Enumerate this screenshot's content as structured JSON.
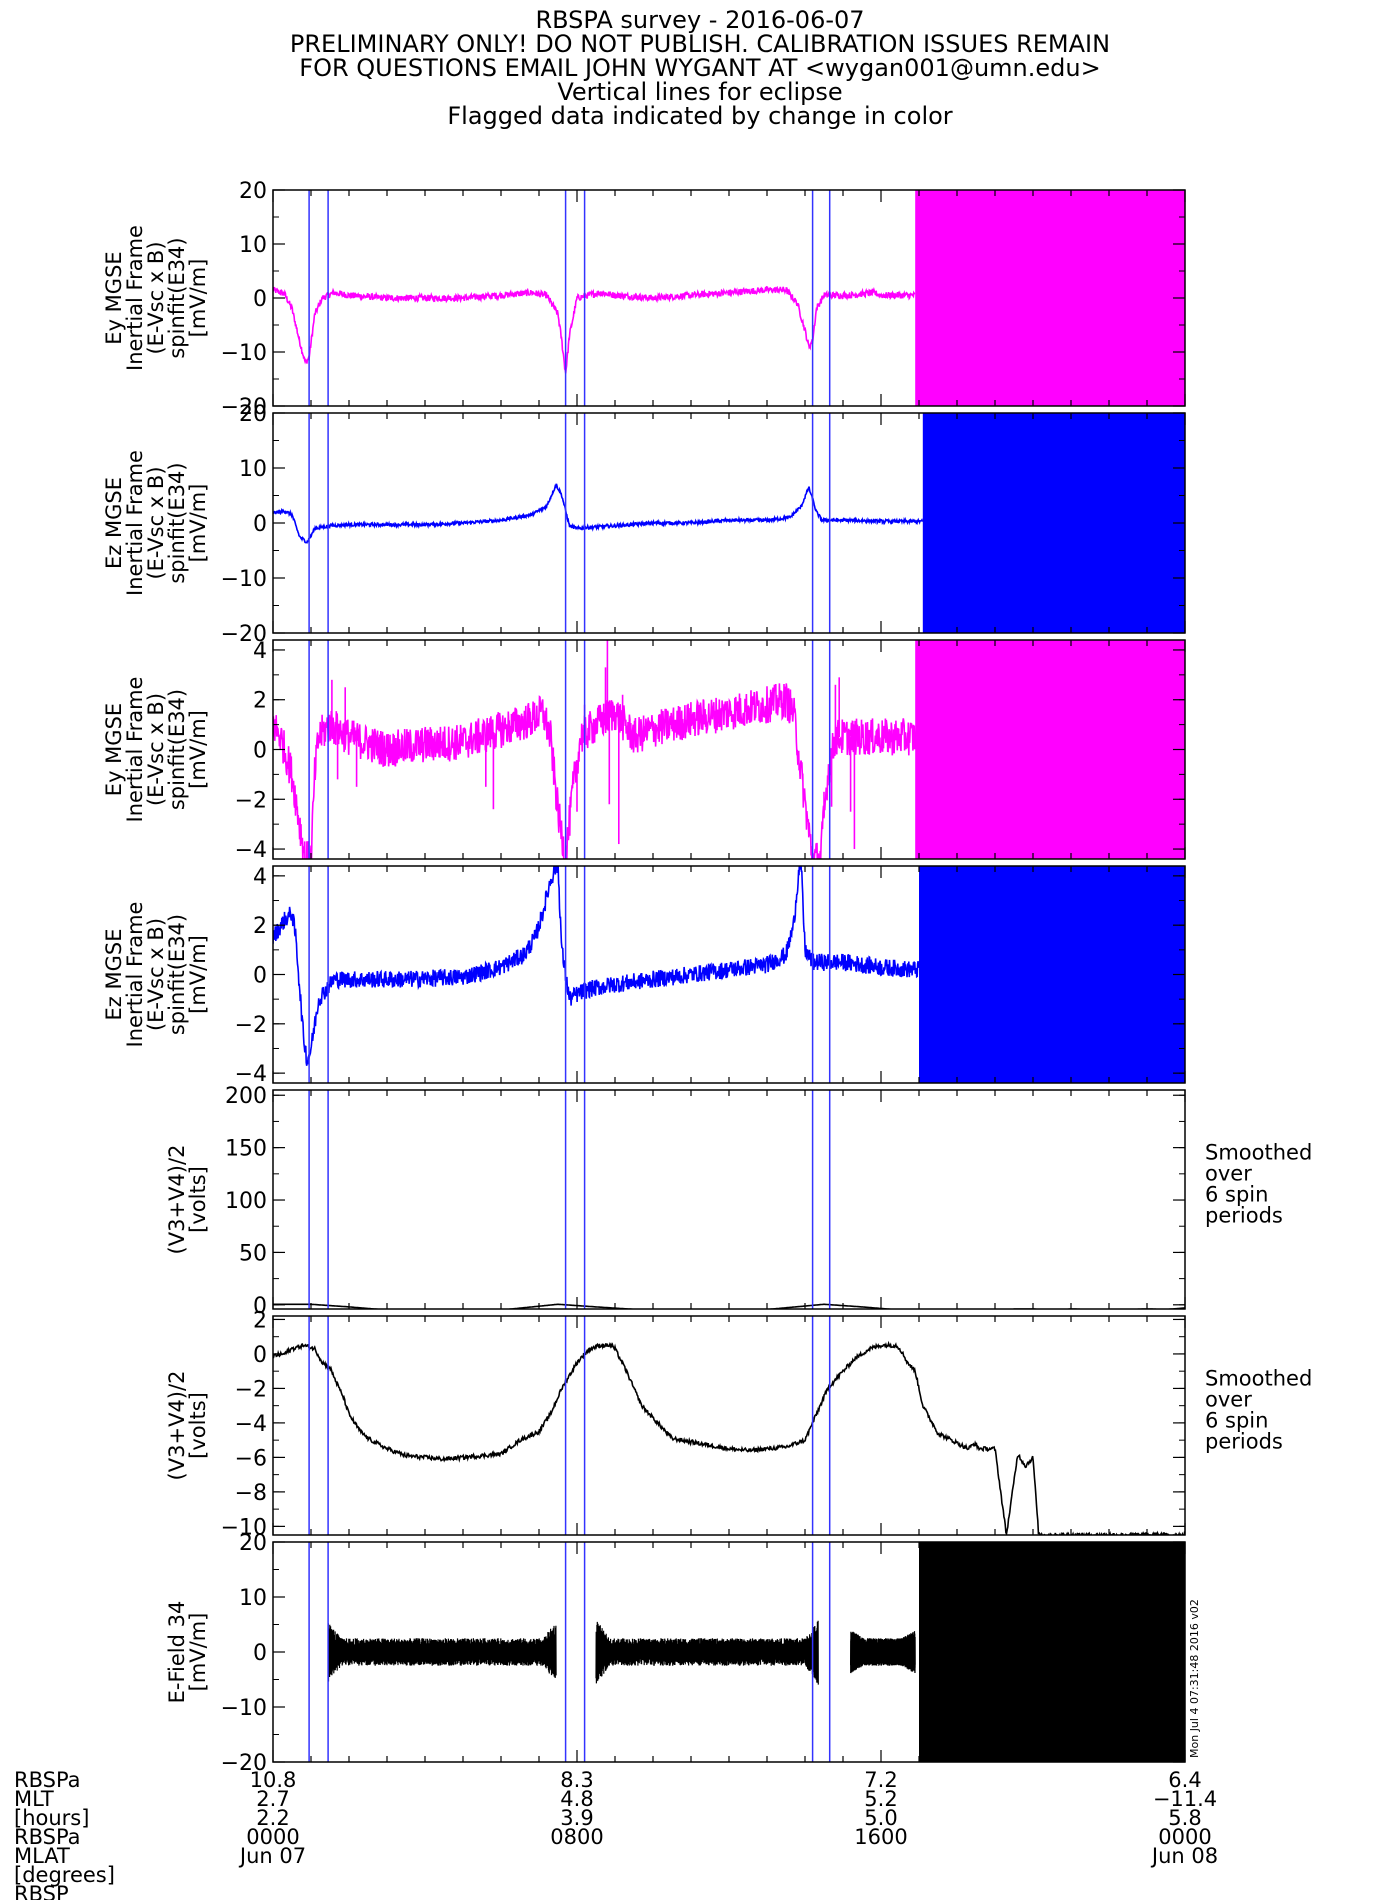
{
  "header": {
    "lines": [
      "RBSPA survey - 2016-06-07",
      "PRELIMINARY ONLY! DO NOT PUBLISH. CALIBRATION ISSUES REMAIN",
      "FOR QUESTIONS EMAIL JOHN WYGANT AT <wygan001@umn.edu>",
      "Vertical lines for eclipse",
      "Flagged data indicated by change in color"
    ]
  },
  "colors": {
    "magenta": "#ff00ff",
    "blue": "#0000ff",
    "black": "#000000",
    "eclipse_line": "#3333ff"
  },
  "timestamp_label": "Mon Jul  4 07:31:48 2016 v02",
  "eclipse_lines_hours": [
    0.95,
    1.45,
    7.7,
    8.2,
    14.2,
    14.65
  ],
  "footer": {
    "row_labels": [
      "RBSPa",
      "MLT",
      "[hours]",
      "RBSPa",
      "MLAT",
      "[degrees]",
      "RBSP"
    ],
    "ticks": [
      {
        "hour": 0,
        "values": [
          "10.8",
          "2.7",
          "2.2",
          "0000",
          "Jun 07"
        ]
      },
      {
        "hour": 8,
        "values": [
          "8.3",
          "4.8",
          "3.9",
          "0800",
          ""
        ]
      },
      {
        "hour": 16,
        "values": [
          "7.2",
          "5.2",
          "5.0",
          "1600",
          ""
        ]
      },
      {
        "hour": 24,
        "values": [
          "6.4",
          "-11.4",
          "5.8",
          "0000",
          "Jun 08"
        ]
      }
    ]
  },
  "chart_data": [
    {
      "type": "line",
      "color": "#ff00ff",
      "ylabel": [
        "Ey MGSE",
        "Inertial Frame",
        "(E-Vsc x B)",
        "spinfit(E34)",
        "[mV/m]"
      ],
      "ylim": [
        -20,
        20
      ],
      "yticks": [
        20,
        10,
        0,
        -10,
        -20
      ],
      "x": [
        0,
        0.3,
        0.5,
        0.7,
        0.85,
        0.95,
        1.1,
        1.3,
        1.6,
        2.0,
        3,
        5,
        6,
        6.8,
        7.2,
        7.5,
        7.6,
        7.7,
        7.8,
        8.0,
        8.3,
        8.6,
        9,
        10,
        11,
        12,
        13,
        13.5,
        13.8,
        14.0,
        14.1,
        14.2,
        14.3,
        14.5,
        14.8,
        15.2,
        15.8,
        16.0,
        16.2,
        16.4,
        16.6,
        16.8,
        24
      ],
      "y": [
        1.5,
        0.8,
        -2,
        -8,
        -12,
        -11,
        -3,
        0,
        1,
        0.5,
        0,
        0,
        0.5,
        1,
        0.5,
        -3,
        -8,
        -14,
        -7,
        0,
        0.5,
        1,
        0.5,
        0,
        0.5,
        1,
        1.5,
        1.5,
        -1,
        -6,
        -9,
        -8,
        -2,
        0.5,
        0.5,
        0.5,
        1,
        0.5,
        0.5,
        0.5,
        0.5,
        0.5,
        0.5
      ],
      "noise": 0.6,
      "flagged_region": {
        "x": [
          16.9,
          24
        ],
        "ylim": [
          -20,
          20
        ]
      }
    },
    {
      "type": "line",
      "color": "#0000ff",
      "ylabel": [
        "Ez MGSE",
        "Inertial Frame",
        "(E-Vsc x B)",
        "spinfit(E34)",
        "[mV/m]"
      ],
      "ylim": [
        -20,
        20
      ],
      "yticks": [
        20,
        10,
        0,
        -10,
        -20
      ],
      "x": [
        0,
        0.3,
        0.5,
        0.7,
        0.9,
        1.1,
        1.5,
        2,
        3,
        4,
        5,
        6,
        6.8,
        7.2,
        7.45,
        7.6,
        7.8,
        8.0,
        8.3,
        9,
        10,
        11,
        12,
        13,
        13.6,
        13.9,
        14.1,
        14.3,
        14.45,
        14.6,
        15.2,
        16,
        16.8,
        24
      ],
      "y": [
        1.8,
        2.2,
        1.5,
        -2.5,
        -3.5,
        -1,
        -0.5,
        -0.3,
        -0.3,
        -0.3,
        0,
        0.5,
        1.5,
        3,
        7,
        5,
        -0.5,
        -1,
        -0.8,
        -0.5,
        0,
        0,
        0.5,
        0.5,
        1,
        3,
        6.5,
        2,
        0.5,
        0.5,
        0.5,
        0.3,
        0.3,
        0.3
      ],
      "noise": 0.3,
      "flagged_region": {
        "x": [
          17.1,
          24
        ],
        "ylim": [
          -20,
          20
        ]
      }
    },
    {
      "type": "line",
      "color": "#ff00ff",
      "ylabel": [
        "Ey MGSE",
        "Inertial Frame",
        "(E-Vsc x B)",
        "spinfit(E34)",
        "[mV/m]"
      ],
      "ylim": [
        -4.4,
        4.4
      ],
      "yticks": [
        4,
        2,
        0,
        -2,
        -4
      ],
      "x": [
        0,
        0.2,
        0.5,
        0.7,
        0.85,
        1.0,
        1.1,
        1.2,
        1.5,
        2.0,
        3.0,
        4.0,
        5.0,
        6.0,
        6.8,
        7.1,
        7.3,
        7.5,
        7.7,
        7.9,
        8.1,
        8.5,
        9.0,
        9.5,
        10.0,
        11.0,
        12.0,
        13.0,
        13.5,
        13.7,
        13.9,
        14.2,
        14.4,
        14.6,
        14.8,
        15.2,
        15.8,
        16.4,
        16.8,
        24
      ],
      "y": [
        1.0,
        0.5,
        -1.0,
        -3.0,
        -4.4,
        -4.4,
        -1.0,
        0.5,
        1.0,
        0.5,
        0.0,
        0.2,
        0.3,
        0.8,
        1.2,
        1.5,
        0.5,
        -2.5,
        -4.4,
        -1.5,
        0.5,
        1.0,
        1.5,
        0.5,
        0.8,
        1.2,
        1.5,
        1.8,
        2.0,
        1.5,
        -1.0,
        -4.4,
        -4.4,
        -1.0,
        0.5,
        0.5,
        0.5,
        0.5,
        0.5,
        0.5
      ],
      "noise": 0.75,
      "spikes": [
        {
          "x": 1.55,
          "y": 2.8
        },
        {
          "x": 1.7,
          "y": -1.2
        },
        {
          "x": 1.9,
          "y": 2.5
        },
        {
          "x": 2.2,
          "y": -1.5
        },
        {
          "x": 5.6,
          "y": -1.5
        },
        {
          "x": 5.8,
          "y": -2.4
        },
        {
          "x": 8.0,
          "y": -2.5
        },
        {
          "x": 8.2,
          "y": 1.8
        },
        {
          "x": 8.75,
          "y": 3.3
        },
        {
          "x": 8.8,
          "y": 4.5
        },
        {
          "x": 8.85,
          "y": -2.2
        },
        {
          "x": 9.1,
          "y": -3.8
        },
        {
          "x": 9.2,
          "y": 2.2
        },
        {
          "x": 14.5,
          "y": -1.7
        },
        {
          "x": 14.7,
          "y": -2.3
        },
        {
          "x": 14.8,
          "y": 2.6
        },
        {
          "x": 14.9,
          "y": 2.9
        },
        {
          "x": 15.2,
          "y": -2.5
        },
        {
          "x": 15.3,
          "y": -4.0
        }
      ],
      "flagged_region": {
        "x": [
          16.9,
          24
        ],
        "ylim": [
          -4.4,
          4.4
        ]
      }
    },
    {
      "type": "line",
      "color": "#0000ff",
      "ylabel": [
        "Ez MGSE",
        "Inertial Frame",
        "(E-Vsc x B)",
        "spinfit(E34)",
        "[mV/m]"
      ],
      "ylim": [
        -4.4,
        4.4
      ],
      "yticks": [
        4,
        2,
        0,
        -2,
        -4
      ],
      "x": [
        0,
        0.3,
        0.5,
        0.6,
        0.8,
        0.9,
        1.0,
        1.2,
        1.6,
        2.5,
        3.5,
        5.0,
        6.0,
        6.6,
        6.9,
        7.1,
        7.3,
        7.45,
        7.5,
        7.6,
        7.8,
        8.0,
        8.3,
        9.0,
        10.0,
        11.0,
        12.0,
        13.0,
        13.5,
        13.7,
        13.85,
        13.9,
        14.0,
        14.2,
        15.0,
        16.0,
        16.8,
        24
      ],
      "y": [
        1.5,
        2.2,
        2.5,
        1.5,
        -2.5,
        -3.5,
        -3.0,
        -1.0,
        -0.2,
        -0.2,
        -0.2,
        -0.1,
        0.3,
        0.8,
        1.5,
        2.5,
        3.8,
        4.4,
        4.4,
        1.0,
        -1.0,
        -0.8,
        -0.6,
        -0.4,
        -0.2,
        0.0,
        0.2,
        0.4,
        0.8,
        2.0,
        4.4,
        4.4,
        1.0,
        0.5,
        0.5,
        0.3,
        0.2,
        0.2
      ],
      "noise": 0.35,
      "flagged_region": {
        "x": [
          17.0,
          24
        ],
        "ylim": [
          -4.4,
          4.4
        ]
      }
    },
    {
      "type": "line",
      "color": "#000000",
      "ylabel": [
        "(V3+V4)/2",
        "[volts]"
      ],
      "right_note": [
        "Smoothed",
        "over",
        "6 spin",
        "periods"
      ],
      "ylim": [
        -4,
        205
      ],
      "yticks": [
        200,
        150,
        100,
        50,
        0
      ],
      "x": [
        0,
        1.0,
        2.0,
        3.0,
        4.5,
        6.0,
        7.5,
        8.5,
        10.0,
        11.5,
        13.0,
        14.5,
        15.5,
        16.5,
        17.0,
        17.3,
        18.5,
        18.8,
        19.0,
        19.3,
        19.5,
        20.0,
        20.5,
        21.0,
        22.0,
        23.0,
        23.5,
        24.0
      ],
      "y": [
        0.5,
        0.5,
        -2.0,
        -5.0,
        -6.0,
        -5.0,
        0.5,
        -2.0,
        -5.5,
        -5.5,
        -4.5,
        0.5,
        -2.0,
        -5.0,
        -5.5,
        -6.0,
        -6.0,
        -4.5,
        -8.0,
        -6.0,
        -4.0,
        -4.0,
        -5.5,
        -4.0,
        -5.0,
        -4.0,
        -4.5,
        -3.0
      ],
      "noise": 0.0
    },
    {
      "type": "line",
      "color": "#000000",
      "ylabel": [
        "(V3+V4)/2",
        "[volts]"
      ],
      "right_note": [
        "Smoothed",
        "over",
        "6 spin",
        "periods"
      ],
      "ylim": [
        -10.5,
        2.2
      ],
      "yticks": [
        2,
        0,
        -2,
        -4,
        -6,
        -8,
        -10
      ],
      "x": [
        0,
        0.3,
        0.5,
        0.8,
        1.1,
        1.3,
        1.5,
        1.7,
        1.85,
        2.0,
        2.3,
        2.5,
        3.0,
        3.5,
        4.0,
        4.5,
        5.0,
        6.0,
        6.5,
        7.0,
        7.3,
        7.6,
        8.0,
        8.2,
        8.35,
        8.6,
        8.9,
        9.0,
        9.3,
        9.7,
        10.5,
        11.5,
        12.0,
        12.5,
        13.5,
        14.0,
        14.2,
        14.6,
        15.0,
        15.3,
        15.5,
        15.7,
        16.0,
        16.4,
        16.5,
        16.7,
        16.9,
        17.1,
        17.5,
        18.3,
        18.45,
        18.6,
        19.0,
        19.3,
        19.6,
        19.8,
        20.0,
        20.15,
        20.3
      ],
      "y": [
        -0.1,
        0.0,
        0.3,
        0.5,
        0.3,
        -0.5,
        -0.8,
        -1.8,
        -2.5,
        -3.5,
        -4.5,
        -4.9,
        -5.5,
        -5.9,
        -6.0,
        -6.1,
        -6.0,
        -5.8,
        -5.0,
        -4.5,
        -3.5,
        -2.0,
        -0.5,
        0.0,
        0.3,
        0.5,
        0.5,
        0.3,
        -1.0,
        -3.0,
        -4.9,
        -5.3,
        -5.5,
        -5.6,
        -5.4,
        -5.0,
        -4.0,
        -2.0,
        -1.0,
        -0.3,
        0.0,
        0.3,
        0.5,
        0.5,
        0.3,
        -0.5,
        -1.0,
        -3.0,
        -4.6,
        -5.5,
        -5.2,
        -5.5,
        -5.5,
        -10.5,
        -5.8,
        -6.5,
        -6.0,
        -10.5,
        -10.5
      ],
      "noise": 0.12
    },
    {
      "type": "line",
      "color": "#000000",
      "ylabel": [
        "E-Field 34",
        "[mV/m]"
      ],
      "ylim": [
        -20,
        20
      ],
      "yticks": [
        20,
        10,
        0,
        -10,
        -20
      ],
      "segments": [
        {
          "x": [
            1.45,
            7.45
          ],
          "amplitude": 2.5,
          "edge_amplitude": 5.5
        },
        {
          "x": 8.5,
          "to": 14.35,
          "amplitude": 2.5,
          "edge_amplitude": 6.0
        },
        {
          "x": 15.2,
          "to": 16.9,
          "amplitude": 2.5,
          "edge_amplitude": 4.0
        }
      ],
      "flagged_region": {
        "x": [
          17.0,
          24
        ],
        "ylim": [
          -20,
          20
        ]
      }
    }
  ]
}
